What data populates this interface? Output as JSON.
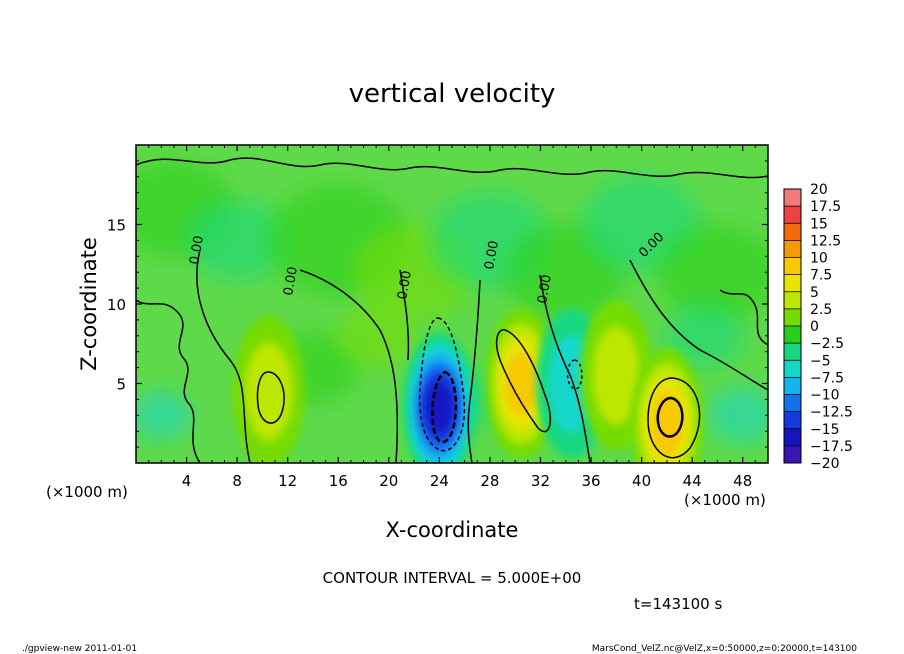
{
  "chart_data": {
    "type": "heatmap",
    "title": "vertical velocity",
    "xlabel": "X-coordinate",
    "ylabel": "Z-coordinate",
    "x_unit": "(×1000 m)",
    "y_unit": "(×1000 m)",
    "xlim": [
      0,
      50
    ],
    "ylim": [
      0,
      20
    ],
    "x_ticks": [
      4,
      8,
      12,
      16,
      20,
      24,
      28,
      32,
      36,
      40,
      44,
      48
    ],
    "y_ticks": [
      5,
      10,
      15
    ],
    "colorbar": {
      "levels": [
        20,
        17.5,
        15,
        12.5,
        10,
        7.5,
        5,
        2.5,
        0,
        -2.5,
        -5,
        -7.5,
        -10,
        -12.5,
        -15,
        -17.5,
        -20
      ],
      "colors": [
        "#f07a7a",
        "#f04040",
        "#f26a0a",
        "#f59a00",
        "#f8c800",
        "#e9e500",
        "#bde600",
        "#76dc00",
        "#28cf1a",
        "#14d880",
        "#14d7cc",
        "#14b4ef",
        "#1471ee",
        "#1738dc",
        "#1414c2",
        "#3c14b2",
        "#6c14b4"
      ]
    },
    "contour_label": "0.00",
    "features": [
      {
        "kind": "updraft",
        "x": 10.5,
        "z": 4.5,
        "value": 6
      },
      {
        "kind": "downdraft",
        "x": 24.0,
        "z": 3.5,
        "value": -14
      },
      {
        "kind": "updraft",
        "x": 30.5,
        "z": 5.0,
        "value": 9
      },
      {
        "kind": "downdraft",
        "x": 34.5,
        "z": 5.0,
        "value": -6
      },
      {
        "kind": "updraft",
        "x": 38.0,
        "z": 5.5,
        "value": 5
      },
      {
        "kind": "updraft",
        "x": 42.0,
        "z": 2.5,
        "value": 10
      }
    ]
  },
  "annotations": {
    "contour_interval": "CONTOUR INTERVAL = 5.000E+00",
    "time": "t=143100 s",
    "footer_left": "./gpview-new   2011-01-01",
    "footer_right": "MarsCond_VelZ.nc@VelZ,x=0:50000,z=0:20000,t=143100"
  }
}
